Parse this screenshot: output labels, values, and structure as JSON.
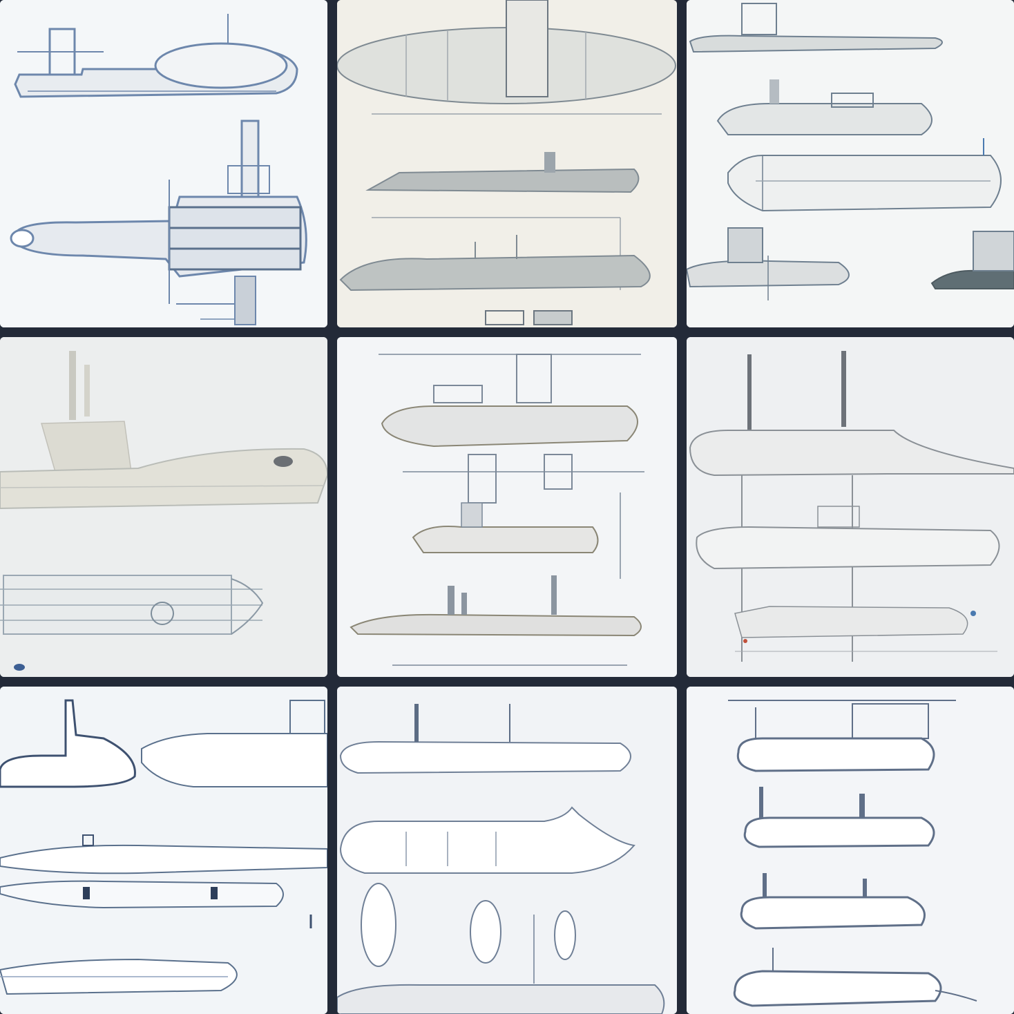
{
  "gallery": {
    "background": "#232a38",
    "tile_count": 9,
    "tiles": [
      {
        "subject": "submarine-blueprint-sketch",
        "paper": "#f4f7f9",
        "ink": "#6d87ac",
        "hull": "#e6eaee"
      },
      {
        "subject": "submarine-blueprint-sketch",
        "paper": "#f1efe8",
        "ink": "#7f8a92",
        "hull": "#d9dcd8"
      },
      {
        "subject": "submarine-blueprint-sketch",
        "paper": "#f4f6f6",
        "ink": "#6e7f8f",
        "hull": "#e2e5e6"
      },
      {
        "subject": "submarine-blueprint-sketch",
        "paper": "#eceeee",
        "ink": "#b9bcb7",
        "hull": "#e0dfd7"
      },
      {
        "subject": "submarine-blueprint-sketch",
        "paper": "#f3f5f7",
        "ink": "#7b8898",
        "hull": "#e5e6e6"
      },
      {
        "subject": "submarine-blueprint-sketch",
        "paper": "#eef0f2",
        "ink": "#8a9096",
        "hull": "#ebecec"
      },
      {
        "subject": "submarine-blueprint-sketch",
        "paper": "#f2f5f8",
        "ink": "#5a708c",
        "hull": "#f0f2f4"
      },
      {
        "subject": "submarine-blueprint-sketch",
        "paper": "#f1f3f6",
        "ink": "#6f7f96",
        "hull": "#eceef0"
      },
      {
        "subject": "submarine-blueprint-sketch",
        "paper": "#f3f5f8",
        "ink": "#5f6f88",
        "hull": "#eef0f2"
      }
    ]
  }
}
